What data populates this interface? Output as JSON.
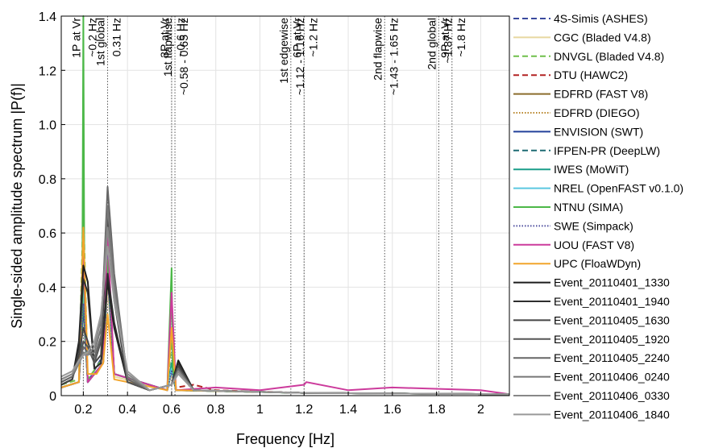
{
  "chart_data": {
    "type": "line",
    "title": "",
    "xlabel": "Frequency [Hz]",
    "ylabel": "Single-sided amplitude spectrum |P(f)|",
    "xlim": [
      0.1,
      2.13
    ],
    "ylim": [
      0,
      1.4
    ],
    "xticks": [
      "0.2",
      "0.4",
      "0.6",
      "0.8",
      "1",
      "1.2",
      "1.4",
      "1.6",
      "1.8",
      "2"
    ],
    "yticks": [
      "0",
      "0.2",
      "0.4",
      "0.6",
      "0.8",
      "1.0",
      "1.2",
      "1.4"
    ],
    "grid": true,
    "legend_position": "right",
    "annotations": [
      {
        "x": 0.2,
        "lines": [
          {
            "text": "1P at Vr"
          },
          {
            "text": "~0.2 Hz"
          }
        ]
      },
      {
        "x": 0.31,
        "lines": [
          {
            "text": "1st global"
          },
          {
            "text": "0.31 Hz"
          }
        ]
      },
      {
        "x": 0.6,
        "lines": [
          {
            "text": "3P at Vr"
          },
          {
            "text": "~0.6 Hz"
          }
        ]
      },
      {
        "x": 0.615,
        "lines": [
          {
            "text": "1st flapwise"
          },
          {
            "text": "~0.58 - 0.65 Hz"
          }
        ]
      },
      {
        "x": 1.14,
        "lines": [
          {
            "text": "1st edgewise"
          },
          {
            "text": "~1.12 - 1.16 Hz"
          }
        ]
      },
      {
        "x": 1.2,
        "lines": [
          {
            "text": "6P at Vr"
          },
          {
            "text": "~1.2 Hz"
          }
        ]
      },
      {
        "x": 1.565,
        "lines": [
          {
            "text": "2nd flapwise"
          },
          {
            "text": "~1.43 - 1.65 Hz"
          }
        ]
      },
      {
        "x": 1.81,
        "lines": [
          {
            "text": "2nd global"
          },
          {
            "text": "~1.87 Hz"
          }
        ]
      },
      {
        "x": 1.87,
        "lines": [
          {
            "text": "9P at Vr"
          },
          {
            "text": "~1.8 Hz"
          }
        ]
      }
    ],
    "series": [
      {
        "name": "4S-Simis (ASHES)",
        "color": "#3a4a9e",
        "dash": "dashed",
        "x": [
          0.1,
          0.18,
          0.2,
          0.22,
          0.29,
          0.31,
          0.34,
          0.58,
          0.6,
          0.62,
          1.2,
          2.13
        ],
        "y": [
          0.03,
          0.05,
          0.42,
          0.05,
          0.15,
          0.55,
          0.08,
          0.02,
          0.12,
          0.02,
          0.01,
          0.005
        ]
      },
      {
        "name": "CGC (Bladed V4.8)",
        "color": "#e8d8a0",
        "dash": "solid",
        "x": [
          0.1,
          0.18,
          0.2,
          0.22,
          0.29,
          0.31,
          0.34,
          0.58,
          0.6,
          0.62,
          1.2,
          2.13
        ],
        "y": [
          0.03,
          0.05,
          0.3,
          0.05,
          0.12,
          0.4,
          0.07,
          0.02,
          0.08,
          0.02,
          0.01,
          0.005
        ]
      },
      {
        "name": "DNVGL (Bladed V4.8)",
        "color": "#6fbf4a",
        "dash": "dashed",
        "x": [
          0.1,
          0.18,
          0.2,
          0.22,
          0.29,
          0.31,
          0.34,
          0.58,
          0.6,
          0.62,
          1.2,
          2.13
        ],
        "y": [
          0.04,
          0.06,
          0.7,
          0.06,
          0.14,
          0.5,
          0.08,
          0.02,
          0.2,
          0.02,
          0.01,
          0.005
        ]
      },
      {
        "name": "DTU (HAWC2)",
        "color": "#b22222",
        "dash": "dashed",
        "x": [
          0.1,
          0.18,
          0.2,
          0.22,
          0.29,
          0.31,
          0.34,
          0.58,
          0.6,
          0.62,
          0.7,
          0.8,
          1.2,
          2.13
        ],
        "y": [
          0.03,
          0.05,
          0.35,
          0.05,
          0.12,
          0.45,
          0.08,
          0.02,
          0.1,
          0.03,
          0.04,
          0.02,
          0.01,
          0.005
        ]
      },
      {
        "name": "EDFRD (FAST V8)",
        "color": "#8b6d2c",
        "dash": "solid",
        "x": [
          0.1,
          0.18,
          0.2,
          0.22,
          0.29,
          0.31,
          0.34,
          0.58,
          0.6,
          0.62,
          1.2,
          2.13
        ],
        "y": [
          0.03,
          0.05,
          0.4,
          0.05,
          0.12,
          0.5,
          0.08,
          0.02,
          0.1,
          0.02,
          0.01,
          0.005
        ]
      },
      {
        "name": "EDFRD (DIEGO)",
        "color": "#b8862b",
        "dash": "dotted",
        "x": [
          0.1,
          0.18,
          0.2,
          0.22,
          0.29,
          0.31,
          0.34,
          0.58,
          0.6,
          0.62,
          1.2,
          2.13
        ],
        "y": [
          0.03,
          0.05,
          0.38,
          0.05,
          0.12,
          0.48,
          0.08,
          0.02,
          0.09,
          0.02,
          0.01,
          0.005
        ]
      },
      {
        "name": "ENVISION (SWT)",
        "color": "#23409a",
        "dash": "solid",
        "x": [
          0.1,
          0.18,
          0.2,
          0.22,
          0.29,
          0.31,
          0.34,
          0.58,
          0.6,
          0.62,
          1.2,
          2.13
        ],
        "y": [
          0.03,
          0.05,
          0.33,
          0.05,
          0.12,
          0.46,
          0.08,
          0.02,
          0.1,
          0.02,
          0.01,
          0.005
        ]
      },
      {
        "name": "IFPEN-PR (DeepLW)",
        "color": "#1e6b73",
        "dash": "dashed",
        "x": [
          0.1,
          0.18,
          0.2,
          0.22,
          0.29,
          0.31,
          0.34,
          0.58,
          0.6,
          0.62,
          1.2,
          2.13
        ],
        "y": [
          0.03,
          0.05,
          0.36,
          0.05,
          0.12,
          0.47,
          0.08,
          0.02,
          0.11,
          0.02,
          0.01,
          0.005
        ]
      },
      {
        "name": "IWES (MoWiT)",
        "color": "#1a9e8a",
        "dash": "solid",
        "x": [
          0.1,
          0.18,
          0.2,
          0.22,
          0.29,
          0.31,
          0.34,
          0.58,
          0.6,
          0.62,
          1.2,
          2.13
        ],
        "y": [
          0.03,
          0.05,
          0.37,
          0.05,
          0.12,
          0.49,
          0.08,
          0.02,
          0.12,
          0.02,
          0.01,
          0.005
        ]
      },
      {
        "name": "NREL (OpenFAST v0.1.0)",
        "color": "#5bc8e0",
        "dash": "solid",
        "x": [
          0.1,
          0.18,
          0.2,
          0.22,
          0.29,
          0.31,
          0.34,
          0.58,
          0.6,
          0.62,
          1.2,
          2.13
        ],
        "y": [
          0.03,
          0.05,
          0.39,
          0.05,
          0.12,
          0.5,
          0.08,
          0.02,
          0.1,
          0.02,
          0.01,
          0.005
        ]
      },
      {
        "name": "NTNU (SIMA)",
        "color": "#4cb848",
        "dash": "solid",
        "x": [
          0.1,
          0.18,
          0.195,
          0.2,
          0.205,
          0.22,
          0.29,
          0.31,
          0.34,
          0.58,
          0.6,
          0.605,
          0.62,
          1.2,
          2.13
        ],
        "y": [
          0.03,
          0.05,
          0.3,
          1.4,
          0.3,
          0.05,
          0.12,
          0.5,
          0.08,
          0.02,
          0.47,
          0.1,
          0.02,
          0.01,
          0.005
        ]
      },
      {
        "name": "SWE (Simpack)",
        "color": "#4e4e9e",
        "dash": "dotted",
        "x": [
          0.1,
          0.18,
          0.2,
          0.22,
          0.29,
          0.31,
          0.34,
          0.58,
          0.6,
          0.62,
          1.2,
          2.13
        ],
        "y": [
          0.03,
          0.05,
          0.34,
          0.05,
          0.12,
          0.45,
          0.08,
          0.02,
          0.09,
          0.02,
          0.01,
          0.005
        ]
      },
      {
        "name": "UOU (FAST V8)",
        "color": "#cc3b9c",
        "dash": "solid",
        "x": [
          0.1,
          0.18,
          0.2,
          0.22,
          0.29,
          0.31,
          0.34,
          0.58,
          0.6,
          0.62,
          0.8,
          1.0,
          1.2,
          1.21,
          1.4,
          1.6,
          2.0,
          2.13
        ],
        "y": [
          0.03,
          0.05,
          0.55,
          0.05,
          0.12,
          0.6,
          0.08,
          0.02,
          0.38,
          0.02,
          0.03,
          0.02,
          0.04,
          0.05,
          0.02,
          0.03,
          0.02,
          0.005
        ]
      },
      {
        "name": "UPC (FloaWDyn)",
        "color": "#f2a52b",
        "dash": "solid",
        "x": [
          0.1,
          0.18,
          0.2,
          0.22,
          0.26,
          0.29,
          0.31,
          0.34,
          0.58,
          0.6,
          0.62,
          1.2,
          2.13
        ],
        "y": [
          0.03,
          0.05,
          0.62,
          0.08,
          0.08,
          0.12,
          0.3,
          0.06,
          0.02,
          0.25,
          0.02,
          0.01,
          0.005
        ]
      },
      {
        "name": "Event_20110401_1330",
        "color": "#1c1c1c",
        "dash": "solid",
        "x": [
          0.1,
          0.15,
          0.18,
          0.2,
          0.22,
          0.25,
          0.28,
          0.31,
          0.34,
          0.4,
          0.5,
          0.6,
          0.63,
          0.7,
          1.2,
          2.13
        ],
        "y": [
          0.04,
          0.06,
          0.2,
          0.48,
          0.42,
          0.1,
          0.12,
          0.42,
          0.25,
          0.05,
          0.02,
          0.04,
          0.13,
          0.02,
          0.01,
          0.005
        ]
      },
      {
        "name": "Event_20110401_1940",
        "color": "#2e2e2e",
        "dash": "solid",
        "x": [
          0.1,
          0.15,
          0.18,
          0.2,
          0.22,
          0.25,
          0.28,
          0.31,
          0.34,
          0.4,
          0.5,
          0.6,
          0.63,
          0.7,
          1.2,
          2.13
        ],
        "y": [
          0.04,
          0.06,
          0.18,
          0.43,
          0.38,
          0.1,
          0.12,
          0.45,
          0.27,
          0.05,
          0.02,
          0.04,
          0.12,
          0.02,
          0.01,
          0.005
        ]
      },
      {
        "name": "Event_20110405_1630",
        "color": "#444444",
        "dash": "solid",
        "x": [
          0.1,
          0.15,
          0.18,
          0.2,
          0.22,
          0.25,
          0.28,
          0.31,
          0.34,
          0.4,
          0.5,
          0.6,
          0.63,
          0.7,
          1.2,
          2.13
        ],
        "y": [
          0.04,
          0.06,
          0.15,
          0.25,
          0.2,
          0.12,
          0.15,
          0.65,
          0.35,
          0.05,
          0.02,
          0.04,
          0.11,
          0.02,
          0.01,
          0.005
        ]
      },
      {
        "name": "Event_20110405_1920",
        "color": "#555555",
        "dash": "solid",
        "x": [
          0.1,
          0.15,
          0.18,
          0.2,
          0.22,
          0.25,
          0.28,
          0.31,
          0.34,
          0.4,
          0.5,
          0.6,
          0.63,
          0.7,
          1.2,
          2.13
        ],
        "y": [
          0.05,
          0.07,
          0.12,
          0.2,
          0.18,
          0.12,
          0.2,
          0.7,
          0.4,
          0.05,
          0.02,
          0.04,
          0.1,
          0.02,
          0.01,
          0.005
        ]
      },
      {
        "name": "Event_20110405_2240",
        "color": "#666666",
        "dash": "solid",
        "x": [
          0.1,
          0.15,
          0.18,
          0.2,
          0.22,
          0.25,
          0.28,
          0.31,
          0.34,
          0.4,
          0.5,
          0.6,
          0.63,
          0.7,
          1.2,
          2.13
        ],
        "y": [
          0.05,
          0.07,
          0.12,
          0.18,
          0.16,
          0.14,
          0.22,
          0.77,
          0.45,
          0.06,
          0.02,
          0.04,
          0.1,
          0.02,
          0.01,
          0.005
        ]
      },
      {
        "name": "Event_20110406_0240",
        "color": "#777777",
        "dash": "solid",
        "x": [
          0.1,
          0.15,
          0.18,
          0.2,
          0.22,
          0.25,
          0.28,
          0.31,
          0.34,
          0.4,
          0.5,
          0.6,
          0.63,
          0.7,
          1.2,
          2.13
        ],
        "y": [
          0.06,
          0.08,
          0.12,
          0.16,
          0.15,
          0.16,
          0.25,
          0.7,
          0.42,
          0.07,
          0.02,
          0.04,
          0.09,
          0.02,
          0.01,
          0.005
        ]
      },
      {
        "name": "Event_20110406_0330",
        "color": "#888888",
        "dash": "solid",
        "x": [
          0.1,
          0.15,
          0.18,
          0.2,
          0.22,
          0.25,
          0.28,
          0.31,
          0.34,
          0.4,
          0.5,
          0.6,
          0.63,
          0.7,
          1.2,
          2.13
        ],
        "y": [
          0.06,
          0.08,
          0.12,
          0.15,
          0.15,
          0.18,
          0.28,
          0.62,
          0.38,
          0.08,
          0.02,
          0.04,
          0.09,
          0.02,
          0.01,
          0.005
        ]
      },
      {
        "name": "Event_20110406_1840",
        "color": "#999999",
        "dash": "solid",
        "x": [
          0.1,
          0.15,
          0.18,
          0.2,
          0.22,
          0.25,
          0.28,
          0.31,
          0.34,
          0.4,
          0.5,
          0.6,
          0.63,
          0.7,
          1.2,
          2.13
        ],
        "y": [
          0.07,
          0.09,
          0.13,
          0.15,
          0.16,
          0.2,
          0.3,
          0.55,
          0.35,
          0.09,
          0.02,
          0.04,
          0.08,
          0.02,
          0.01,
          0.005
        ]
      }
    ]
  }
}
